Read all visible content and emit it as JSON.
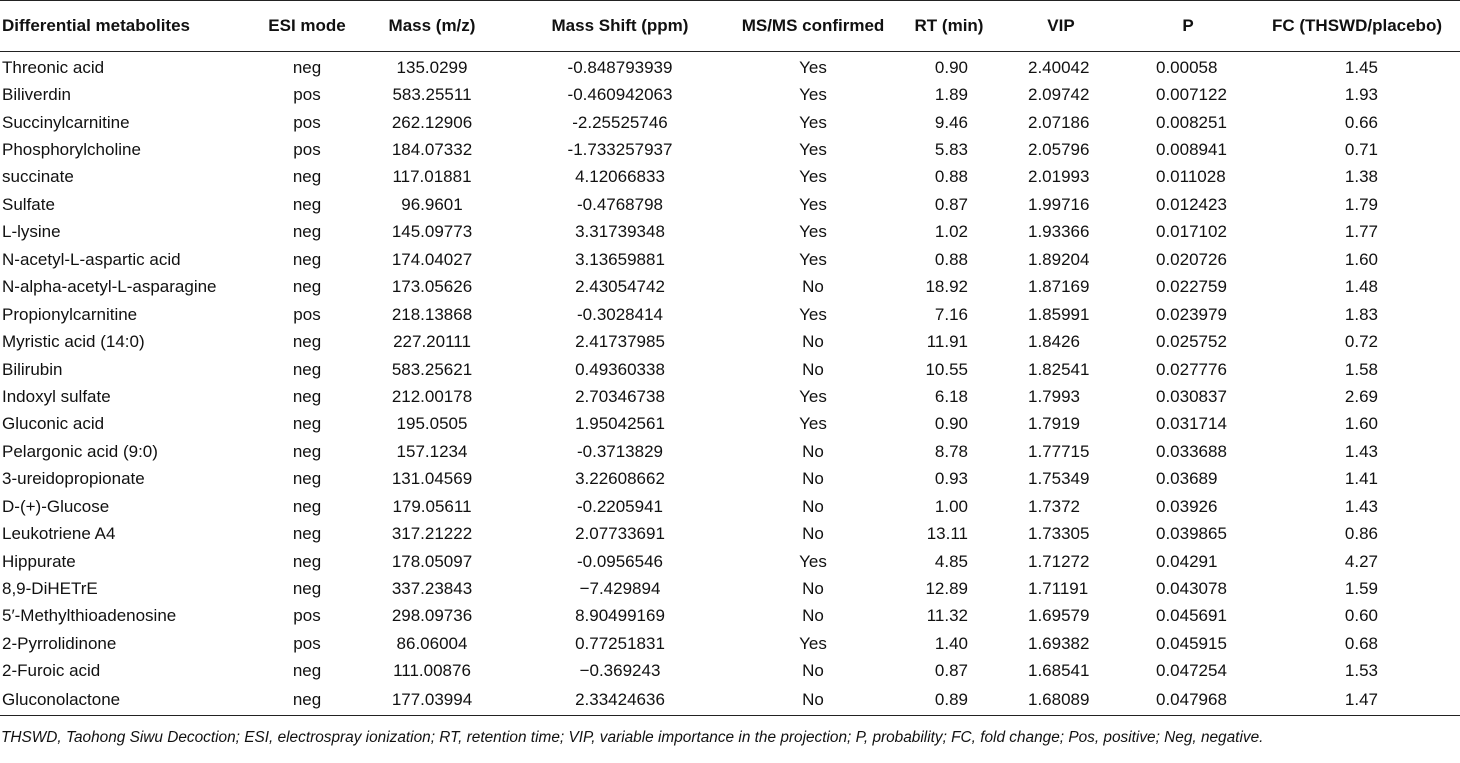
{
  "table": {
    "columns": [
      "Differential metabolites",
      "ESI mode",
      "Mass (m/z)",
      "Mass Shift (ppm)",
      "MS/MS confirmed",
      "RT (min)",
      "VIP",
      "P",
      "FC (THSWD/placebo)"
    ],
    "rows": [
      [
        "Threonic acid",
        "neg",
        "135.0299",
        "-0.848793939",
        "Yes",
        "0.90",
        "2.40042",
        "0.00058",
        "1.45"
      ],
      [
        "Biliverdin",
        "pos",
        "583.25511",
        "-0.460942063",
        "Yes",
        "1.89",
        "2.09742",
        "0.007122",
        "1.93"
      ],
      [
        "Succinylcarnitine",
        "pos",
        "262.12906",
        "-2.25525746",
        "Yes",
        "9.46",
        "2.07186",
        "0.008251",
        "0.66"
      ],
      [
        "Phosphorylcholine",
        "pos",
        "184.07332",
        "-1.733257937",
        "Yes",
        "5.83",
        "2.05796",
        "0.008941",
        "0.71"
      ],
      [
        "succinate",
        "neg",
        "117.01881",
        "4.12066833",
        "Yes",
        "0.88",
        "2.01993",
        "0.011028",
        "1.38"
      ],
      [
        "Sulfate",
        "neg",
        "96.9601",
        "-0.4768798",
        "Yes",
        "0.87",
        "1.99716",
        "0.012423",
        "1.79"
      ],
      [
        "L-lysine",
        "neg",
        "145.09773",
        "3.31739348",
        "Yes",
        "1.02",
        "1.93366",
        "0.017102",
        "1.77"
      ],
      [
        "N-acetyl-L-aspartic acid",
        "neg",
        "174.04027",
        "3.13659881",
        "Yes",
        "0.88",
        "1.89204",
        "0.020726",
        "1.60"
      ],
      [
        "N-alpha-acetyl-L-asparagine",
        "neg",
        "173.05626",
        "2.43054742",
        "No",
        "18.92",
        "1.87169",
        "0.022759",
        "1.48"
      ],
      [
        "Propionylcarnitine",
        "pos",
        "218.13868",
        "-0.3028414",
        "Yes",
        "7.16",
        "1.85991",
        "0.023979",
        "1.83"
      ],
      [
        "Myristic acid (14:0)",
        "neg",
        "227.20111",
        "2.41737985",
        "No",
        "11.91",
        "1.8426",
        "0.025752",
        "0.72"
      ],
      [
        "Bilirubin",
        "neg",
        "583.25621",
        "0.49360338",
        "No",
        "10.55",
        "1.82541",
        "0.027776",
        "1.58"
      ],
      [
        "Indoxyl sulfate",
        "neg",
        "212.00178",
        "2.70346738",
        "Yes",
        "6.18",
        "1.7993",
        "0.030837",
        "2.69"
      ],
      [
        "Gluconic acid",
        "neg",
        "195.0505",
        "1.95042561",
        "Yes",
        "0.90",
        "1.7919",
        "0.031714",
        "1.60"
      ],
      [
        "Pelargonic acid (9:0)",
        "neg",
        "157.1234",
        "-0.3713829",
        "No",
        "8.78",
        "1.77715",
        "0.033688",
        "1.43"
      ],
      [
        "3-ureidopropionate",
        "neg",
        "131.04569",
        "3.22608662",
        "No",
        "0.93",
        "1.75349",
        "0.03689",
        "1.41"
      ],
      [
        "D-(+)-Glucose",
        "neg",
        "179.05611",
        "-0.2205941",
        "No",
        "1.00",
        "1.7372",
        "0.03926",
        "1.43"
      ],
      [
        "Leukotriene A4",
        "neg",
        "317.21222",
        "2.07733691",
        "No",
        "13.11",
        "1.73305",
        "0.039865",
        "0.86"
      ],
      [
        "Hippurate",
        "neg",
        "178.05097",
        "-0.0956546",
        "Yes",
        "4.85",
        "1.71272",
        "0.04291",
        "4.27"
      ],
      [
        "8,9-DiHETrE",
        "neg",
        "337.23843",
        "−7.429894",
        "No",
        "12.89",
        "1.71191",
        "0.043078",
        "1.59"
      ],
      [
        "5′-Methylthioadenosine",
        "pos",
        "298.09736",
        "8.90499169",
        "No",
        "11.32",
        "1.69579",
        "0.045691",
        "0.60"
      ],
      [
        "2-Pyrrolidinone",
        "pos",
        "86.06004",
        "0.77251831",
        "Yes",
        "1.40",
        "1.69382",
        "0.045915",
        "0.68"
      ],
      [
        "2-Furoic acid",
        "neg",
        "111.00876",
        "−0.369243",
        "No",
        "0.87",
        "1.68541",
        "0.047254",
        "1.53"
      ],
      [
        "Gluconolactone",
        "neg",
        "177.03994",
        "2.33424636",
        "No",
        "0.89",
        "1.68089",
        "0.047968",
        "1.47"
      ]
    ]
  },
  "footnote": "THSWD, Taohong Siwu Decoction; ESI, electrospray ionization; RT, retention time; VIP, variable importance in the projection; P, probability; FC, fold change; Pos, positive; Neg, negative."
}
